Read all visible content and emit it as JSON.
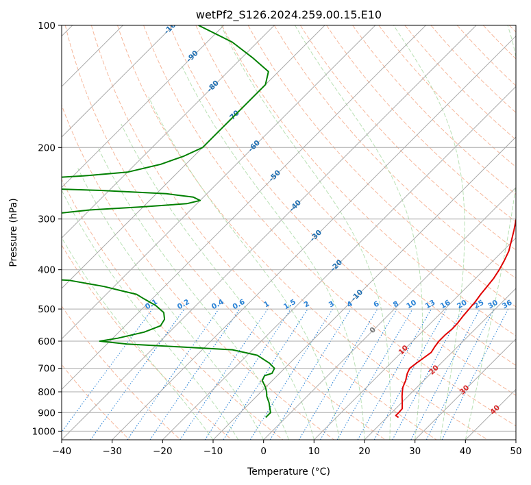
{
  "chart_data": {
    "type": "line",
    "subtype": "skew-t log-p diagram",
    "title": "wetPf2_S126.2024.259.00.15.E10",
    "xlabel": "Temperature (°C)",
    "ylabel": "Pressure (hPa)",
    "xlim": [
      -40,
      50
    ],
    "ylim": [
      1050,
      100
    ],
    "yscale": "log",
    "x_ticks": [
      -40,
      -30,
      -20,
      -10,
      0,
      10,
      20,
      30,
      40,
      50
    ],
    "x_tick_labels": [
      "−40",
      "−30",
      "−20",
      "−10",
      "0",
      "10",
      "20",
      "30",
      "40",
      "50"
    ],
    "y_ticks": [
      100,
      200,
      300,
      400,
      500,
      600,
      700,
      800,
      900,
      1000
    ],
    "y_tick_labels": [
      "100",
      "200",
      "300",
      "400",
      "500",
      "600",
      "700",
      "800",
      "900",
      "1000"
    ],
    "grid": true,
    "colors": {
      "temperature": "#e00000",
      "dewpoint": "#008000",
      "dry_adiabats": "#f4a582",
      "moist_adiabats": "#a6d8a0",
      "mixing_ratio": "#2b83d6",
      "isotherms": "#aaaaaa",
      "isobars": "#aaaaaa",
      "isotherm_labels_cold": "#1f6fb2",
      "isotherm_labels_warm": "#d62728",
      "zero_isotherm_label": "#777777"
    },
    "series": [
      {
        "name": "",
        "kind": "temperature",
        "pressure": [
          925,
          915,
          900,
          880,
          850,
          820,
          800,
          780,
          750,
          720,
          700,
          680,
          660,
          640,
          620,
          600,
          580,
          560,
          540,
          520,
          500,
          480,
          460,
          440,
          420,
          400,
          380,
          360,
          340,
          320,
          300,
          280,
          260,
          240,
          220,
          200,
          180,
          160,
          150,
          140,
          130,
          120,
          110,
          100
        ],
        "values": [
          22.3,
          21.4,
          21.4,
          21.3,
          20.1,
          18.8,
          18.0,
          17.2,
          16.4,
          15.3,
          14.8,
          15.1,
          15.5,
          15.9,
          15.5,
          15.2,
          15.2,
          15.4,
          15.3,
          15.0,
          14.8,
          14.6,
          14.2,
          13.9,
          13.6,
          13.0,
          12.2,
          11.2,
          9.7,
          8.1,
          6.3,
          4.5,
          2.8,
          0.8,
          -2.0,
          -5.0,
          -8.0,
          -11.5,
          -13.1,
          -14.2,
          -14.6,
          -16.0,
          -16.2,
          -16.0
        ]
      },
      {
        "name": "",
        "kind": "dewpoint",
        "pressure": [
          925,
          915,
          900,
          880,
          850,
          820,
          800,
          780,
          750,
          730,
          720,
          700,
          680,
          650,
          630,
          620,
          610,
          600,
          590,
          570,
          550,
          530,
          510,
          490,
          470,
          460,
          450,
          440,
          425,
          415,
          410,
          380,
          340,
          310,
          290,
          285,
          280,
          275,
          270,
          265,
          260,
          255,
          250,
          246,
          240,
          235,
          230,
          220,
          210,
          200,
          190,
          180,
          170,
          160,
          150,
          140,
          130,
          120,
          110,
          100
        ],
        "values": [
          -4.0,
          -4.0,
          -4.0,
          -4.9,
          -6.3,
          -8.0,
          -8.9,
          -10.0,
          -12.0,
          -12.5,
          -11.5,
          -12.0,
          -14.0,
          -18.0,
          -24.0,
          -35.0,
          -46.0,
          -52.0,
          -49.0,
          -45.0,
          -43.0,
          -43.5,
          -45.0,
          -48.0,
          -52.0,
          -54.0,
          -58.0,
          -62.0,
          -70.0,
          -85.0,
          -110.0,
          -112.0,
          -106.0,
          -100.0,
          -85.0,
          -80.0,
          -70.0,
          -62.0,
          -60.0,
          -62.0,
          -68.0,
          -82.0,
          -104.0,
          -107.0,
          -100.0,
          -88.0,
          -80.0,
          -75.0,
          -72.0,
          -70.0,
          -70.0,
          -70.0,
          -70.0,
          -70.0,
          -70.0,
          -70.0,
          -72.0,
          -78.0,
          -85.0,
          -95.0
        ]
      }
    ],
    "isotherm_labels": [
      "-100",
      "-90",
      "-80",
      "-70",
      "-60",
      "-50",
      "-40",
      "-30",
      "-20",
      "-10",
      "0",
      "10",
      "20",
      "30",
      "40"
    ],
    "mixing_ratio_labels": [
      "0.1",
      "0.2",
      "0.4",
      "0.6",
      "1",
      "1.5",
      "2",
      "3",
      "4",
      "6",
      "8",
      "10",
      "13",
      "16",
      "20",
      "25",
      "30",
      "36"
    ]
  }
}
